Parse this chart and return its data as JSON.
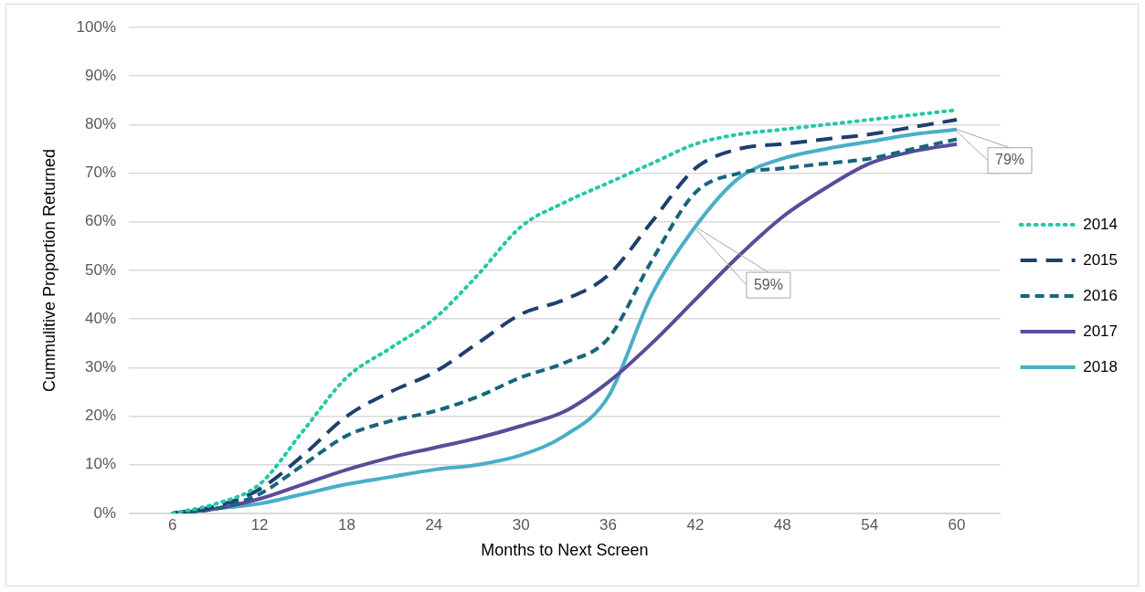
{
  "chart_data": {
    "type": "line",
    "xlabel": "Months to Next Screen",
    "ylabel": "Cummulitive Proportion Returned",
    "x": [
      6,
      9,
      12,
      15,
      18,
      21,
      24,
      27,
      30,
      33,
      36,
      39,
      42,
      45,
      48,
      51,
      54,
      57,
      60
    ],
    "xlim": [
      3,
      63
    ],
    "xticks": [
      6,
      12,
      18,
      24,
      30,
      36,
      42,
      48,
      54,
      60
    ],
    "ylim": [
      0,
      100
    ],
    "yticks": [
      {
        "value": 0,
        "label": "0%"
      },
      {
        "value": 10,
        "label": "10%"
      },
      {
        "value": 20,
        "label": "20%"
      },
      {
        "value": 30,
        "label": "30%"
      },
      {
        "value": 40,
        "label": "40%"
      },
      {
        "value": 50,
        "label": "50%"
      },
      {
        "value": 60,
        "label": "60%"
      },
      {
        "value": 70,
        "label": "70%"
      },
      {
        "value": 80,
        "label": "80%"
      },
      {
        "value": 90,
        "label": "90%"
      },
      {
        "value": 100,
        "label": "100%"
      }
    ],
    "grid": "y",
    "legend": "right",
    "marker": "none",
    "series": [
      {
        "name": "2014",
        "color": "#22c9a4",
        "line_style": "dotted",
        "values": [
          0,
          2,
          6,
          17,
          28,
          34,
          40,
          49,
          59,
          64,
          68,
          72,
          76,
          78,
          79,
          80,
          81,
          82,
          83
        ]
      },
      {
        "name": "2015",
        "color": "#1f3f6e",
        "line_style": "dashed",
        "values": [
          0,
          1.5,
          5,
          12,
          20,
          25,
          29,
          35,
          41,
          44,
          49,
          60,
          71,
          75,
          76,
          77,
          78,
          79.5,
          81
        ]
      },
      {
        "name": "2016",
        "color": "#16667e",
        "line_style": "dashed",
        "values": [
          0,
          1,
          4,
          10,
          16,
          19,
          21,
          24,
          28,
          31,
          36,
          52,
          66,
          70,
          71,
          72,
          73,
          75,
          77
        ]
      },
      {
        "name": "2017",
        "color": "#5b4b9a",
        "line_style": "solid",
        "values": [
          0,
          1,
          3,
          6,
          9,
          11.5,
          13.5,
          15.5,
          18,
          21,
          27,
          35,
          44,
          53,
          61,
          67,
          72,
          74.5,
          76
        ]
      },
      {
        "name": "2018",
        "color": "#4aaec8",
        "line_style": "solid",
        "values": [
          0,
          1,
          2,
          4,
          6,
          7.5,
          9,
          10,
          12,
          16,
          24,
          45,
          59,
          69,
          73,
          75,
          76.5,
          78,
          79
        ]
      }
    ],
    "annotations": [
      {
        "text": "79%",
        "x": 60,
        "y": 79
      },
      {
        "text": "59%",
        "x": 42,
        "y": 59
      }
    ]
  }
}
